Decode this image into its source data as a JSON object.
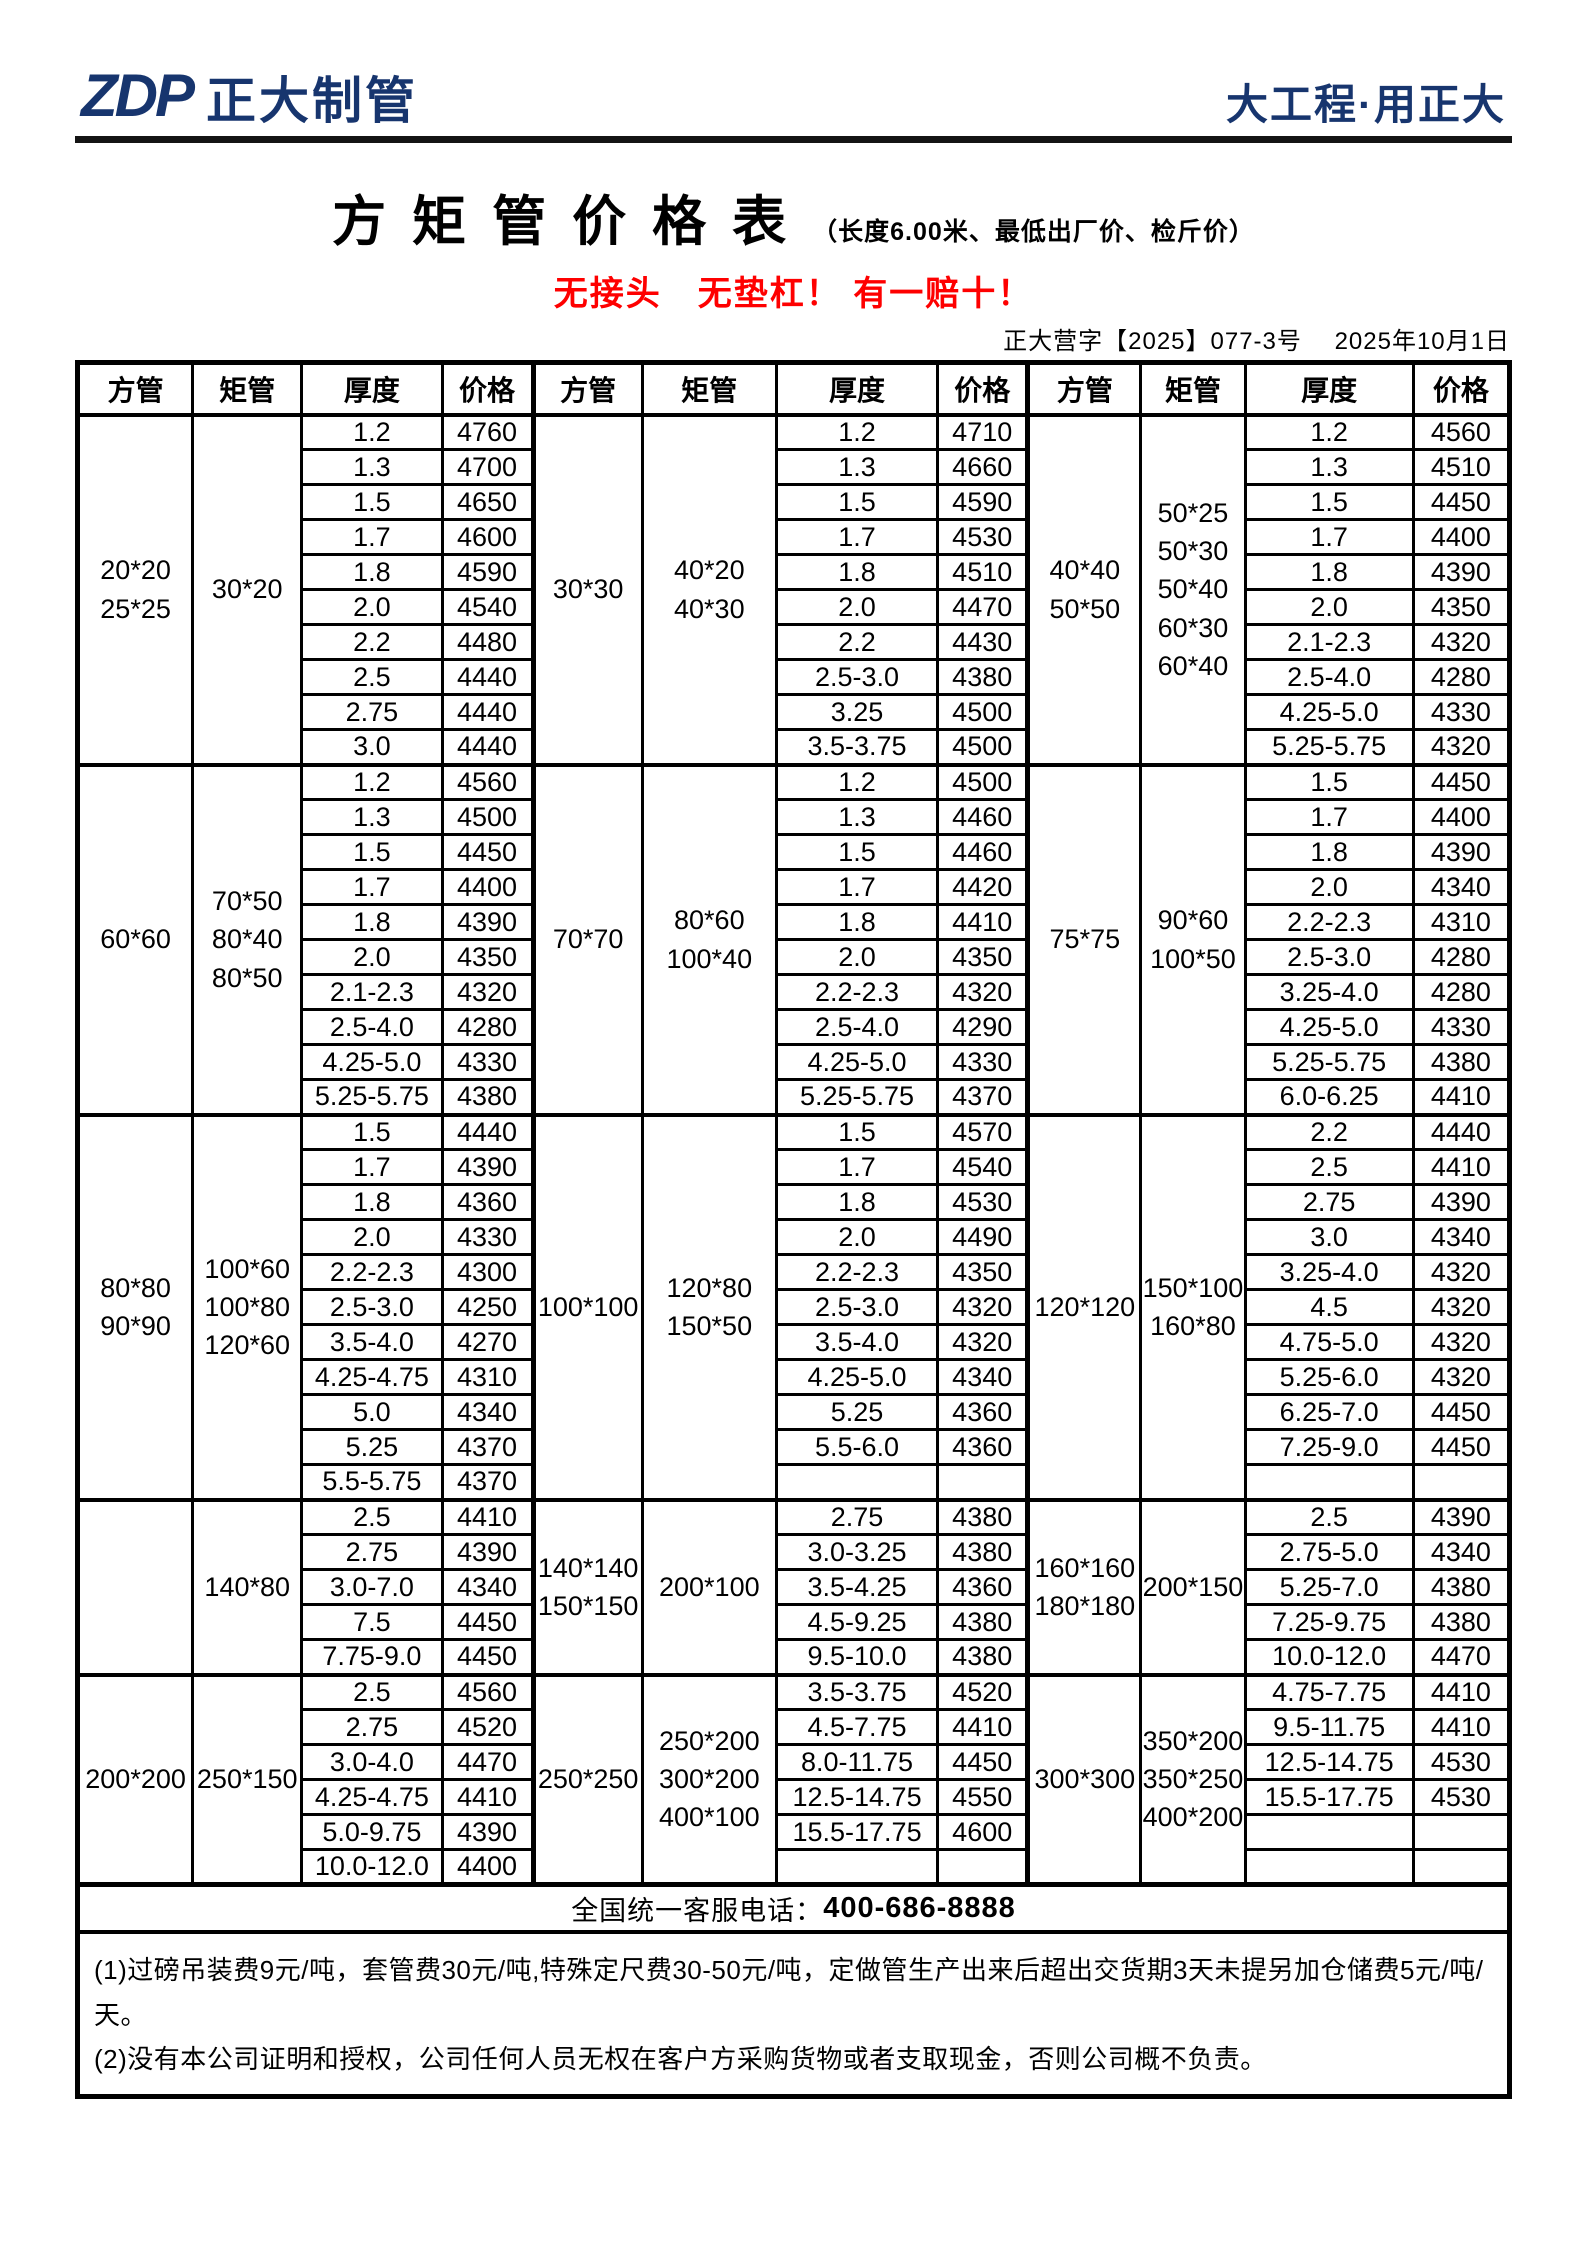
{
  "header": {
    "logo_zdp": "ZDP",
    "logo_name": "正大制管",
    "slogan": "大工程·用正大"
  },
  "title": {
    "main": "方矩管价格表",
    "suffix": "（长度6.00米、最低出厂价、检斤价）"
  },
  "promo": "无接头　无垫杠！ 有一赔十！",
  "doc_line": "正大营字【2025】077-3号　 2025年10月1日",
  "colors": {
    "navy": "#17356E",
    "red": "#FE0000"
  },
  "table": {
    "headers": [
      "方管",
      "矩管",
      "厚度",
      "价格",
      "方管",
      "矩管",
      "厚度",
      "价格",
      "方管",
      "矩管",
      "厚度",
      "价格"
    ],
    "groups": [
      {
        "blocks": [
          {
            "fang": "20*20\n25*25",
            "ju": "30*20",
            "rows": [
              [
                "1.2",
                "4760"
              ],
              [
                "1.3",
                "4700"
              ],
              [
                "1.5",
                "4650"
              ],
              [
                "1.7",
                "4600"
              ],
              [
                "1.8",
                "4590"
              ],
              [
                "2.0",
                "4540"
              ],
              [
                "2.2",
                "4480"
              ],
              [
                "2.5",
                "4440"
              ],
              [
                "2.75",
                "4440"
              ],
              [
                "3.0",
                "4440"
              ]
            ]
          },
          {
            "fang": "30*30",
            "ju": "40*20\n40*30",
            "rows": [
              [
                "1.2",
                "4710"
              ],
              [
                "1.3",
                "4660"
              ],
              [
                "1.5",
                "4590"
              ],
              [
                "1.7",
                "4530"
              ],
              [
                "1.8",
                "4510"
              ],
              [
                "2.0",
                "4470"
              ],
              [
                "2.2",
                "4430"
              ],
              [
                "2.5-3.0",
                "4380"
              ],
              [
                "3.25",
                "4500"
              ],
              [
                "3.5-3.75",
                "4500"
              ]
            ]
          },
          {
            "fang": "40*40\n50*50",
            "ju": "50*25\n50*30\n50*40\n60*30\n60*40",
            "rows": [
              [
                "1.2",
                "4560"
              ],
              [
                "1.3",
                "4510"
              ],
              [
                "1.5",
                "4450"
              ],
              [
                "1.7",
                "4400"
              ],
              [
                "1.8",
                "4390"
              ],
              [
                "2.0",
                "4350"
              ],
              [
                "2.1-2.3",
                "4320"
              ],
              [
                "2.5-4.0",
                "4280"
              ],
              [
                "4.25-5.0",
                "4330"
              ],
              [
                "5.25-5.75",
                "4320"
              ]
            ]
          }
        ]
      },
      {
        "blocks": [
          {
            "fang": "60*60",
            "ju": "70*50\n80*40\n80*50",
            "rows": [
              [
                "1.2",
                "4560"
              ],
              [
                "1.3",
                "4500"
              ],
              [
                "1.5",
                "4450"
              ],
              [
                "1.7",
                "4400"
              ],
              [
                "1.8",
                "4390"
              ],
              [
                "2.0",
                "4350"
              ],
              [
                "2.1-2.3",
                "4320"
              ],
              [
                "2.5-4.0",
                "4280"
              ],
              [
                "4.25-5.0",
                "4330"
              ],
              [
                "5.25-5.75",
                "4380"
              ]
            ]
          },
          {
            "fang": "70*70",
            "ju": "80*60\n100*40",
            "rows": [
              [
                "1.2",
                "4500"
              ],
              [
                "1.3",
                "4460"
              ],
              [
                "1.5",
                "4460"
              ],
              [
                "1.7",
                "4420"
              ],
              [
                "1.8",
                "4410"
              ],
              [
                "2.0",
                "4350"
              ],
              [
                "2.2-2.3",
                "4320"
              ],
              [
                "2.5-4.0",
                "4290"
              ],
              [
                "4.25-5.0",
                "4330"
              ],
              [
                "5.25-5.75",
                "4370"
              ]
            ]
          },
          {
            "fang": "75*75",
            "ju": "90*60\n100*50",
            "rows": [
              [
                "1.5",
                "4450"
              ],
              [
                "1.7",
                "4400"
              ],
              [
                "1.8",
                "4390"
              ],
              [
                "2.0",
                "4340"
              ],
              [
                "2.2-2.3",
                "4310"
              ],
              [
                "2.5-3.0",
                "4280"
              ],
              [
                "3.25-4.0",
                "4280"
              ],
              [
                "4.25-5.0",
                "4330"
              ],
              [
                "5.25-5.75",
                "4380"
              ],
              [
                "6.0-6.25",
                "4410"
              ]
            ]
          }
        ]
      },
      {
        "blocks": [
          {
            "fang": "80*80\n90*90",
            "ju": "100*60\n100*80\n120*60",
            "rows": [
              [
                "1.5",
                "4440"
              ],
              [
                "1.7",
                "4390"
              ],
              [
                "1.8",
                "4360"
              ],
              [
                "2.0",
                "4330"
              ],
              [
                "2.2-2.3",
                "4300"
              ],
              [
                "2.5-3.0",
                "4250"
              ],
              [
                "3.5-4.0",
                "4270"
              ],
              [
                "4.25-4.75",
                "4310"
              ],
              [
                "5.0",
                "4340"
              ],
              [
                "5.25",
                "4370"
              ],
              [
                "5.5-5.75",
                "4370"
              ]
            ]
          },
          {
            "fang": "100*100",
            "ju": "120*80\n150*50",
            "rows": [
              [
                "1.5",
                "4570"
              ],
              [
                "1.7",
                "4540"
              ],
              [
                "1.8",
                "4530"
              ],
              [
                "2.0",
                "4490"
              ],
              [
                "2.2-2.3",
                "4350"
              ],
              [
                "2.5-3.0",
                "4320"
              ],
              [
                "3.5-4.0",
                "4320"
              ],
              [
                "4.25-5.0",
                "4340"
              ],
              [
                "5.25",
                "4360"
              ],
              [
                "5.5-6.0",
                "4360"
              ],
              [
                "",
                ""
              ]
            ]
          },
          {
            "fang": "120*120",
            "ju": "150*100\n160*80",
            "rows": [
              [
                "2.2",
                "4440"
              ],
              [
                "2.5",
                "4410"
              ],
              [
                "2.75",
                "4390"
              ],
              [
                "3.0",
                "4340"
              ],
              [
                "3.25-4.0",
                "4320"
              ],
              [
                "4.5",
                "4320"
              ],
              [
                "4.75-5.0",
                "4320"
              ],
              [
                "5.25-6.0",
                "4320"
              ],
              [
                "6.25-7.0",
                "4450"
              ],
              [
                "7.25-9.0",
                "4450"
              ],
              [
                "",
                ""
              ]
            ]
          }
        ]
      },
      {
        "blocks": [
          {
            "fang": "",
            "ju": "140*80",
            "rows": [
              [
                "2.5",
                "4410"
              ],
              [
                "2.75",
                "4390"
              ],
              [
                "3.0-7.0",
                "4340"
              ],
              [
                "7.5",
                "4450"
              ],
              [
                "7.75-9.0",
                "4450"
              ]
            ]
          },
          {
            "fang": "140*140\n150*150",
            "ju": "200*100",
            "rows": [
              [
                "2.75",
                "4380"
              ],
              [
                "3.0-3.25",
                "4380"
              ],
              [
                "3.5-4.25",
                "4360"
              ],
              [
                "4.5-9.25",
                "4380"
              ],
              [
                "9.5-10.0",
                "4380"
              ]
            ]
          },
          {
            "fang": "160*160\n180*180",
            "ju": "200*150",
            "rows": [
              [
                "2.5",
                "4390"
              ],
              [
                "2.75-5.0",
                "4340"
              ],
              [
                "5.25-7.0",
                "4380"
              ],
              [
                "7.25-9.75",
                "4380"
              ],
              [
                "10.0-12.0",
                "4470"
              ]
            ]
          }
        ]
      },
      {
        "blocks": [
          {
            "fang": "200*200",
            "ju": "250*150",
            "rows": [
              [
                "2.5",
                "4560"
              ],
              [
                "2.75",
                "4520"
              ],
              [
                "3.0-4.0",
                "4470"
              ],
              [
                "4.25-4.75",
                "4410"
              ],
              [
                "5.0-9.75",
                "4390"
              ],
              [
                "10.0-12.0",
                "4400"
              ]
            ]
          },
          {
            "fang": "250*250",
            "ju": "250*200\n300*200\n400*100",
            "rows": [
              [
                "3.5-3.75",
                "4520"
              ],
              [
                "4.5-7.75",
                "4410"
              ],
              [
                "8.0-11.75",
                "4450"
              ],
              [
                "12.5-14.75",
                "4550"
              ],
              [
                "15.5-17.75",
                "4600"
              ],
              [
                "",
                ""
              ]
            ]
          },
          {
            "fang": "300*300",
            "ju": "350*200\n350*250\n400*200",
            "rows": [
              [
                "4.75-7.75",
                "4410"
              ],
              [
                "9.5-11.75",
                "4410"
              ],
              [
                "12.5-14.75",
                "4530"
              ],
              [
                "15.5-17.75",
                "4530"
              ],
              [
                "",
                ""
              ],
              [
                "",
                ""
              ]
            ]
          }
        ]
      }
    ]
  },
  "footer": {
    "phone_label": "全国统一客服电话：",
    "phone_number": "400-686-8888"
  },
  "notes": [
    "(1)过磅吊装费9元/吨，套管费30元/吨,特殊定尺费30-50元/吨，定做管生产出来后超出交货期3天未提另加仓储费5元/吨/天。",
    "(2)没有本公司证明和授权，公司任何人员无权在客户方采购货物或者支取现金，否则公司概不负责。"
  ]
}
